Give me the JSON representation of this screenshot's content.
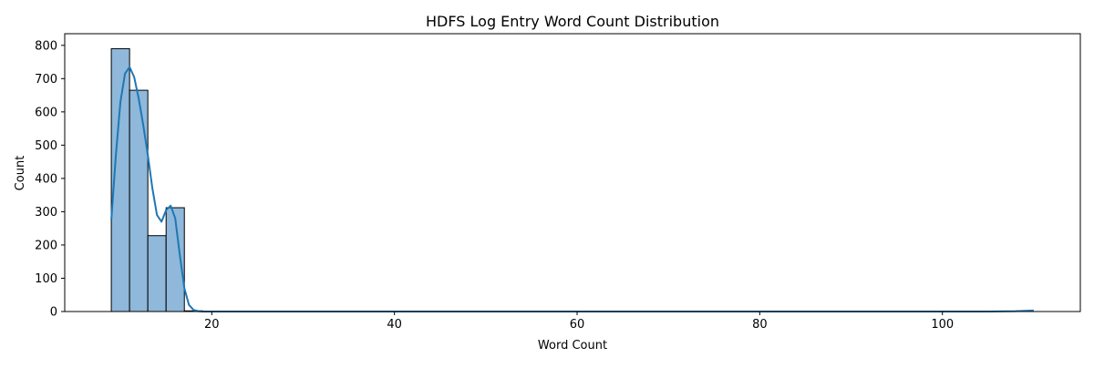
{
  "chart_data": {
    "type": "bar",
    "title": "HDFS Log Entry Word Count Distribution",
    "xlabel": "Word Count",
    "ylabel": "Count",
    "xlim": [
      3.9,
      115.1
    ],
    "ylim": [
      0,
      835
    ],
    "xticks": [
      20,
      40,
      60,
      80,
      100
    ],
    "yticks": [
      0,
      100,
      200,
      300,
      400,
      500,
      600,
      700,
      800
    ],
    "grid": false,
    "bars": [
      {
        "x0": 9,
        "x1": 11,
        "count": 790
      },
      {
        "x0": 11,
        "x1": 13,
        "count": 665
      },
      {
        "x0": 13,
        "x1": 15,
        "count": 228
      },
      {
        "x0": 15,
        "x1": 17,
        "count": 312
      },
      {
        "x0": 17,
        "x1": 19,
        "count": 2
      }
    ],
    "kde": {
      "name": "",
      "x": [
        9,
        9.5,
        10,
        10.5,
        11,
        11.5,
        12,
        12.5,
        13,
        13.5,
        14,
        14.5,
        15,
        15.5,
        16,
        16.5,
        17,
        17.5,
        18,
        18.5,
        19,
        20,
        22,
        25,
        30,
        40,
        50,
        60,
        70,
        80,
        90,
        100,
        105,
        108,
        110
      ],
      "y": [
        275,
        470,
        630,
        715,
        735,
        705,
        640,
        560,
        470,
        370,
        290,
        270,
        305,
        318,
        280,
        170,
        70,
        20,
        5,
        1,
        0,
        0,
        0,
        0,
        0,
        0,
        0,
        0,
        0,
        0,
        0,
        0,
        0,
        1,
        3
      ]
    },
    "colors": {
      "bar_fill": "#8fb8da",
      "bar_edge": "#000000",
      "line": "#1f77b4"
    }
  }
}
